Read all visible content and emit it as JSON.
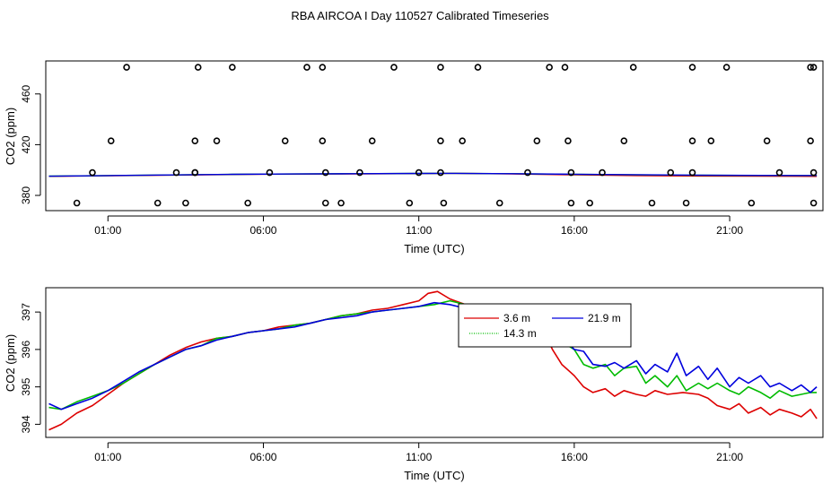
{
  "title": "RBA AIRCOA I  Day 110527  Calibrated Timeseries",
  "chart_data": [
    {
      "type": "scatter",
      "xlabel": "Time (UTC)",
      "ylabel": "CO2 (ppm)",
      "x_ticks": [
        "01:00",
        "06:00",
        "11:00",
        "16:00",
        "21:00"
      ],
      "x_tick_hours": [
        1,
        6,
        11,
        16,
        21
      ],
      "xlim": [
        -1.0,
        24.0
      ],
      "y_ticks": [
        380,
        420,
        460
      ],
      "ylim": [
        368,
        486
      ],
      "calibration_points": {
        "x": [
          0.0,
          0.5,
          1.6,
          1.1,
          2.6,
          3.2,
          3.9,
          3.8,
          3.8,
          3.8,
          3.5,
          5.5,
          4.5,
          5.0,
          6.2,
          6.7,
          7.4,
          7.9,
          7.9,
          8.0,
          8.0,
          8.5,
          9.1,
          9.5,
          10.2,
          10.7,
          11.0,
          11.7,
          11.7,
          11.7,
          11.8,
          12.4,
          12.9,
          13.6,
          14.5,
          14.8,
          15.2,
          15.7,
          15.8,
          15.9,
          15.9,
          16.5,
          16.9,
          17.6,
          17.9,
          18.5,
          19.1,
          19.6,
          19.8,
          19.8,
          19.8,
          20.4,
          20.9,
          21.7,
          22.6,
          22.2,
          23.6,
          23.6,
          23.7,
          23.7,
          23.7
        ],
        "y": [
          374,
          398,
          481,
          423,
          374,
          398,
          481,
          423,
          398,
          398,
          374,
          374,
          423,
          481,
          398,
          423,
          481,
          481,
          423,
          398,
          374,
          374,
          398,
          423,
          481,
          374,
          398,
          481,
          423,
          398,
          374,
          423,
          481,
          374,
          398,
          423,
          481,
          481,
          423,
          398,
          374,
          374,
          398,
          423,
          481,
          374,
          398,
          374,
          398,
          423,
          481,
          423,
          481,
          374,
          398,
          423,
          481,
          423,
          398,
          374,
          481
        ]
      },
      "series": [
        {
          "color": "#dd0000",
          "x": [
            -0.9,
            1.0,
            3.0,
            5.0,
            7.0,
            9.0,
            11.0,
            12.0,
            14.0,
            16.0,
            18.0,
            20.0,
            22.0,
            23.8
          ],
          "y": [
            395.0,
            395.5,
            396.0,
            396.5,
            396.8,
            397.0,
            397.2,
            397.4,
            397.0,
            396.2,
            395.6,
            395.3,
            395.1,
            395.0
          ]
        },
        {
          "color": "#00bb00",
          "x": [
            -0.9,
            1.0,
            3.0,
            5.0,
            7.0,
            9.0,
            11.0,
            12.0,
            14.0,
            16.0,
            18.0,
            20.0,
            22.0,
            23.8
          ],
          "y": [
            395.2,
            395.6,
            396.1,
            396.6,
            396.9,
            397.1,
            397.3,
            397.4,
            397.1,
            396.6,
            396.2,
            395.9,
            395.7,
            395.6
          ]
        },
        {
          "color": "#0000dd",
          "x": [
            -0.9,
            1.0,
            3.0,
            5.0,
            7.0,
            9.0,
            11.0,
            12.0,
            14.0,
            16.0,
            18.0,
            20.0,
            22.0,
            23.8
          ],
          "y": [
            395.1,
            395.6,
            396.1,
            396.6,
            396.9,
            397.1,
            397.3,
            397.4,
            397.1,
            396.7,
            396.3,
            396.0,
            395.8,
            395.7
          ]
        }
      ]
    },
    {
      "type": "line",
      "xlabel": "Time (UTC)",
      "ylabel": "CO2 (ppm)",
      "x_ticks": [
        "01:00",
        "06:00",
        "11:00",
        "16:00",
        "21:00"
      ],
      "x_tick_hours": [
        1,
        6,
        11,
        16,
        21
      ],
      "xlim": [
        -1.0,
        24.0
      ],
      "y_ticks": [
        "394",
        "395",
        "396",
        "397"
      ],
      "y_tick_values": [
        394,
        395,
        396,
        397
      ],
      "ylim": [
        393.65,
        397.65
      ],
      "legend_position": "top-center",
      "series": [
        {
          "name": "3.6 m",
          "color": "#dd0000",
          "x": [
            -0.9,
            -0.5,
            0.0,
            0.5,
            1.0,
            1.5,
            2.0,
            2.5,
            3.0,
            3.5,
            4.0,
            4.5,
            5.0,
            5.5,
            6.0,
            6.5,
            7.0,
            7.5,
            8.0,
            8.5,
            9.0,
            9.5,
            10.0,
            10.5,
            11.0,
            11.3,
            11.6,
            12.0,
            12.5,
            13.0,
            13.5,
            14.0,
            14.3,
            14.6,
            15.0,
            15.3,
            15.6,
            16.0,
            16.3,
            16.6,
            17.0,
            17.3,
            17.6,
            18.0,
            18.3,
            18.6,
            19.0,
            19.5,
            20.0,
            20.3,
            20.6,
            21.0,
            21.3,
            21.6,
            22.0,
            22.3,
            22.6,
            23.0,
            23.3,
            23.6,
            23.8
          ],
          "y": [
            393.85,
            394.0,
            394.3,
            394.5,
            394.8,
            395.1,
            395.35,
            395.6,
            395.85,
            396.05,
            396.2,
            396.3,
            396.35,
            396.45,
            396.5,
            396.6,
            396.65,
            396.7,
            396.8,
            396.9,
            396.95,
            397.05,
            397.1,
            397.2,
            397.3,
            397.5,
            397.55,
            397.35,
            397.2,
            397.1,
            397.05,
            397.0,
            396.95,
            396.8,
            396.5,
            396.0,
            395.6,
            395.3,
            395.0,
            394.85,
            394.95,
            394.75,
            394.9,
            394.8,
            394.75,
            394.9,
            394.8,
            394.85,
            394.8,
            394.7,
            394.5,
            394.4,
            394.55,
            394.3,
            394.45,
            394.25,
            394.4,
            394.3,
            394.2,
            394.4,
            394.15
          ]
        },
        {
          "name": "14.3 m",
          "color": "#00bb00",
          "x": [
            -0.9,
            -0.5,
            0.0,
            0.5,
            1.0,
            1.5,
            2.0,
            2.5,
            3.0,
            3.5,
            4.0,
            4.5,
            5.0,
            5.5,
            6.0,
            6.5,
            7.0,
            7.5,
            8.0,
            8.5,
            9.0,
            9.5,
            10.0,
            10.5,
            11.0,
            11.5,
            12.0,
            12.5,
            13.0,
            13.5,
            14.0,
            14.5,
            15.0,
            15.3,
            15.6,
            16.0,
            16.3,
            16.6,
            17.0,
            17.3,
            17.6,
            18.0,
            18.3,
            18.6,
            19.0,
            19.3,
            19.6,
            20.0,
            20.3,
            20.6,
            21.0,
            21.3,
            21.6,
            22.0,
            22.3,
            22.6,
            23.0,
            23.3,
            23.6,
            23.8
          ],
          "y": [
            394.45,
            394.4,
            394.6,
            394.75,
            394.9,
            395.1,
            395.35,
            395.6,
            395.8,
            396.0,
            396.1,
            396.3,
            396.35,
            396.45,
            396.5,
            396.55,
            396.65,
            396.7,
            396.8,
            396.9,
            396.95,
            397.0,
            397.05,
            397.1,
            397.15,
            397.2,
            397.3,
            397.2,
            397.1,
            397.05,
            397.0,
            396.9,
            396.7,
            396.5,
            396.2,
            396.0,
            395.6,
            395.5,
            395.6,
            395.3,
            395.5,
            395.55,
            395.1,
            395.3,
            395.0,
            395.3,
            394.9,
            395.1,
            394.95,
            395.1,
            394.9,
            394.8,
            395.0,
            394.85,
            394.7,
            394.9,
            394.75,
            394.8,
            394.85,
            394.85
          ]
        },
        {
          "name": "21.9 m",
          "color": "#0000dd",
          "x": [
            -0.9,
            -0.5,
            0.0,
            0.5,
            1.0,
            1.5,
            2.0,
            2.5,
            3.0,
            3.5,
            4.0,
            4.5,
            5.0,
            5.5,
            6.0,
            6.5,
            7.0,
            7.5,
            8.0,
            8.5,
            9.0,
            9.5,
            10.0,
            10.5,
            11.0,
            11.5,
            12.0,
            12.5,
            13.0,
            13.5,
            14.0,
            14.5,
            15.0,
            15.3,
            15.6,
            16.0,
            16.3,
            16.6,
            17.0,
            17.3,
            17.6,
            18.0,
            18.3,
            18.6,
            19.0,
            19.3,
            19.6,
            20.0,
            20.3,
            20.6,
            21.0,
            21.3,
            21.6,
            22.0,
            22.3,
            22.6,
            23.0,
            23.3,
            23.6,
            23.8
          ],
          "y": [
            394.55,
            394.4,
            394.55,
            394.7,
            394.9,
            395.15,
            395.4,
            395.6,
            395.8,
            396.0,
            396.1,
            396.25,
            396.35,
            396.45,
            396.5,
            396.55,
            396.6,
            396.7,
            396.8,
            396.85,
            396.9,
            397.0,
            397.05,
            397.1,
            397.15,
            397.25,
            397.2,
            397.1,
            397.1,
            397.05,
            397.0,
            396.9,
            396.75,
            396.6,
            396.35,
            396.0,
            395.95,
            395.6,
            395.55,
            395.65,
            395.5,
            395.7,
            395.35,
            395.6,
            395.4,
            395.9,
            395.3,
            395.55,
            395.2,
            395.5,
            395.0,
            395.25,
            395.1,
            395.3,
            395.0,
            395.1,
            394.9,
            395.05,
            394.85,
            395.0
          ]
        }
      ]
    }
  ]
}
